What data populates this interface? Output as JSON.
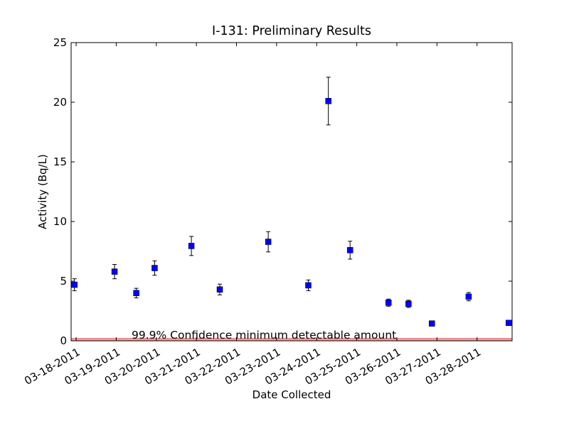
{
  "chart_data": {
    "type": "scatter",
    "title": "I-131: Preliminary Results",
    "xlabel": "Date Collected",
    "ylabel": "Activity (Bq/L)",
    "xlim": [
      "2011-03-17T21:00",
      "2011-03-28T21:00"
    ],
    "ylim": [
      0,
      25
    ],
    "grid": false,
    "y_ticks": [
      0,
      5,
      10,
      15,
      20,
      25
    ],
    "x_ticks": [
      "03-18-2011",
      "03-19-2011",
      "03-20-2011",
      "03-21-2011",
      "03-22-2011",
      "03-23-2011",
      "03-24-2011",
      "03-25-2011",
      "03-26-2011",
      "03-27-2011",
      "03-28-2011"
    ],
    "marker_color": "#0000ff",
    "series": [
      {
        "points": [
          {
            "x": "2011-03-17T23:00",
            "y": 4.7,
            "err": 0.5
          },
          {
            "x": "2011-03-18T23:00",
            "y": 5.8,
            "err": 0.6
          },
          {
            "x": "2011-03-19T12:00",
            "y": 4.0,
            "err": 0.4
          },
          {
            "x": "2011-03-19T23:00",
            "y": 6.1,
            "err": 0.6
          },
          {
            "x": "2011-03-20T21:00",
            "y": 7.95,
            "err": 0.8
          },
          {
            "x": "2011-03-21T14:00",
            "y": 4.3,
            "err": 0.45
          },
          {
            "x": "2011-03-22T19:00",
            "y": 8.3,
            "err": 0.85
          },
          {
            "x": "2011-03-23T19:00",
            "y": 4.65,
            "err": 0.45
          },
          {
            "x": "2011-03-24T07:00",
            "y": 20.1,
            "err": 2.0
          },
          {
            "x": "2011-03-24T20:00",
            "y": 7.6,
            "err": 0.75
          },
          {
            "x": "2011-03-25T19:00",
            "y": 3.2,
            "err": 0.3
          },
          {
            "x": "2011-03-26T07:00",
            "y": 3.1,
            "err": 0.3
          },
          {
            "x": "2011-03-26T21:00",
            "y": 1.45,
            "err": 0.0
          },
          {
            "x": "2011-03-27T19:00",
            "y": 3.7,
            "err": 0.35
          },
          {
            "x": "2011-03-28T19:00",
            "y": 1.5,
            "err": 0.0
          }
        ]
      }
    ],
    "reference_band": {
      "label": "99.9% Confidence minimum detectable amount",
      "y_min": 0,
      "y_max": 0.2,
      "color": "#ff9a9a"
    }
  }
}
